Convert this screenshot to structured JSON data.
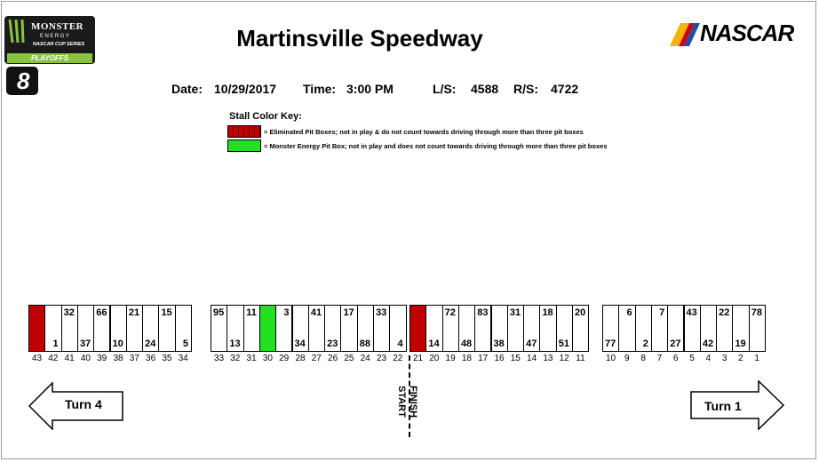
{
  "title": "Martinsville Speedway",
  "info": {
    "date_label": "Date:",
    "date": "10/29/2017",
    "time_label": "Time:",
    "time": "3:00 PM",
    "ls_label": "L/S:",
    "ls": "4588",
    "rs_label": "R/S:",
    "rs": "4722"
  },
  "key": {
    "title": "Stall Color Key:",
    "red_text": "= Eliminated Pit Boxes; not in play & do not count towards driving through more than three pit boxes",
    "green_text": "= Monster Energy Pit Box; not in play and does not count towards driving through more than three pit boxes"
  },
  "logos": {
    "monster_line1": "MONSTER",
    "monster_line2": "ENERGY",
    "monster_line3": "NASCAR CUP SERIES",
    "playoffs": "PLAYOFFS",
    "round_badge": "8",
    "nascar": "NASCAR"
  },
  "colors": {
    "eliminated": "#c00000",
    "monster": "#22e022",
    "playoffs_green": "#8ac43f"
  },
  "arrows": {
    "left_label": "Turn 4",
    "right_label": "Turn 1"
  },
  "start_finish": {
    "start": "START",
    "finish": "FINISH"
  },
  "stalls": [
    {
      "n": "43",
      "car": "",
      "status": "eliminated"
    },
    {
      "n": "42",
      "car": "1",
      "pos": "bottom"
    },
    {
      "n": "41",
      "car": "32",
      "pos": "top"
    },
    {
      "n": "40",
      "car": "37",
      "pos": "bottom"
    },
    {
      "n": "39",
      "car": "66",
      "pos": "top"
    },
    {
      "n": "38",
      "car": "10",
      "pos": "bottom"
    },
    {
      "n": "37",
      "car": "21",
      "pos": "top"
    },
    {
      "n": "36",
      "car": "24",
      "pos": "bottom"
    },
    {
      "n": "35",
      "car": "15",
      "pos": "top"
    },
    {
      "n": "34",
      "car": "5",
      "pos": "bottom"
    },
    {
      "n": "33",
      "car": "95",
      "pos": "top"
    },
    {
      "n": "32",
      "car": "13",
      "pos": "bottom"
    },
    {
      "n": "31",
      "car": "11",
      "pos": "top"
    },
    {
      "n": "30",
      "car": "",
      "status": "monster"
    },
    {
      "n": "29",
      "car": "3",
      "pos": "top"
    },
    {
      "n": "28",
      "car": "34",
      "pos": "bottom"
    },
    {
      "n": "27",
      "car": "41",
      "pos": "top"
    },
    {
      "n": "26",
      "car": "23",
      "pos": "bottom"
    },
    {
      "n": "25",
      "car": "17",
      "pos": "top"
    },
    {
      "n": "24",
      "car": "88",
      "pos": "bottom"
    },
    {
      "n": "23",
      "car": "33",
      "pos": "top"
    },
    {
      "n": "22",
      "car": "4",
      "pos": "bottom"
    },
    {
      "n": "21",
      "car": "",
      "status": "eliminated"
    },
    {
      "n": "20",
      "car": "14",
      "pos": "bottom"
    },
    {
      "n": "19",
      "car": "72",
      "pos": "top"
    },
    {
      "n": "18",
      "car": "48",
      "pos": "bottom"
    },
    {
      "n": "17",
      "car": "83",
      "pos": "top"
    },
    {
      "n": "16",
      "car": "38",
      "pos": "bottom"
    },
    {
      "n": "15",
      "car": "31",
      "pos": "top"
    },
    {
      "n": "14",
      "car": "47",
      "pos": "bottom"
    },
    {
      "n": "13",
      "car": "18",
      "pos": "top"
    },
    {
      "n": "12",
      "car": "51",
      "pos": "bottom"
    },
    {
      "n": "11",
      "car": "20",
      "pos": "top"
    },
    {
      "n": "10",
      "car": "77",
      "pos": "bottom"
    },
    {
      "n": "9",
      "car": "6",
      "pos": "top"
    },
    {
      "n": "8",
      "car": "2",
      "pos": "bottom"
    },
    {
      "n": "7",
      "car": "7",
      "pos": "top"
    },
    {
      "n": "6",
      "car": "27",
      "pos": "bottom"
    },
    {
      "n": "5",
      "car": "43",
      "pos": "top"
    },
    {
      "n": "4",
      "car": "42",
      "pos": "bottom"
    },
    {
      "n": "3",
      "car": "22",
      "pos": "top"
    },
    {
      "n": "2",
      "car": "19",
      "pos": "bottom"
    },
    {
      "n": "1",
      "car": "78",
      "pos": "top"
    }
  ]
}
